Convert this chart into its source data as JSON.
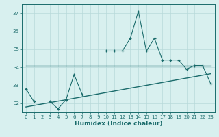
{
  "xlabel": "Humidex (Indice chaleur)",
  "x": [
    0,
    1,
    2,
    3,
    4,
    5,
    6,
    7,
    8,
    9,
    10,
    11,
    12,
    13,
    14,
    15,
    16,
    17,
    18,
    19,
    20,
    21,
    22,
    23
  ],
  "y_main": [
    32.8,
    32.1,
    null,
    32.1,
    31.7,
    32.2,
    33.6,
    32.5,
    null,
    null,
    34.9,
    34.9,
    34.9,
    35.6,
    37.1,
    34.9,
    35.6,
    34.4,
    34.4,
    34.4,
    33.9,
    34.1,
    34.1,
    33.1
  ],
  "y_upper": [
    34.1,
    34.1,
    34.1,
    34.1,
    34.1,
    34.1,
    34.1,
    34.1,
    34.1,
    34.1,
    34.1,
    34.1,
    34.1,
    34.1,
    34.1,
    34.1,
    34.1,
    34.1,
    34.1,
    34.1,
    34.1,
    34.1,
    34.1,
    34.1
  ],
  "y_lower": [
    31.8,
    31.88,
    31.96,
    32.04,
    32.12,
    32.2,
    32.28,
    32.36,
    32.44,
    32.52,
    32.6,
    32.68,
    32.76,
    32.84,
    32.92,
    33.0,
    33.08,
    33.16,
    33.24,
    33.32,
    33.4,
    33.48,
    33.56,
    33.64
  ],
  "line_color": "#1a6b6b",
  "bg_color": "#d8f0ef",
  "grid_color": "#b8dada",
  "ylim": [
    31.5,
    37.5
  ],
  "yticks": [
    32,
    33,
    34,
    35,
    36,
    37
  ],
  "xlim": [
    -0.5,
    23.5
  ],
  "xticks": [
    0,
    1,
    2,
    3,
    4,
    5,
    6,
    7,
    8,
    9,
    10,
    11,
    12,
    13,
    14,
    15,
    16,
    17,
    18,
    19,
    20,
    21,
    22,
    23
  ],
  "tick_fontsize": 5.0,
  "xlabel_fontsize": 6.5
}
